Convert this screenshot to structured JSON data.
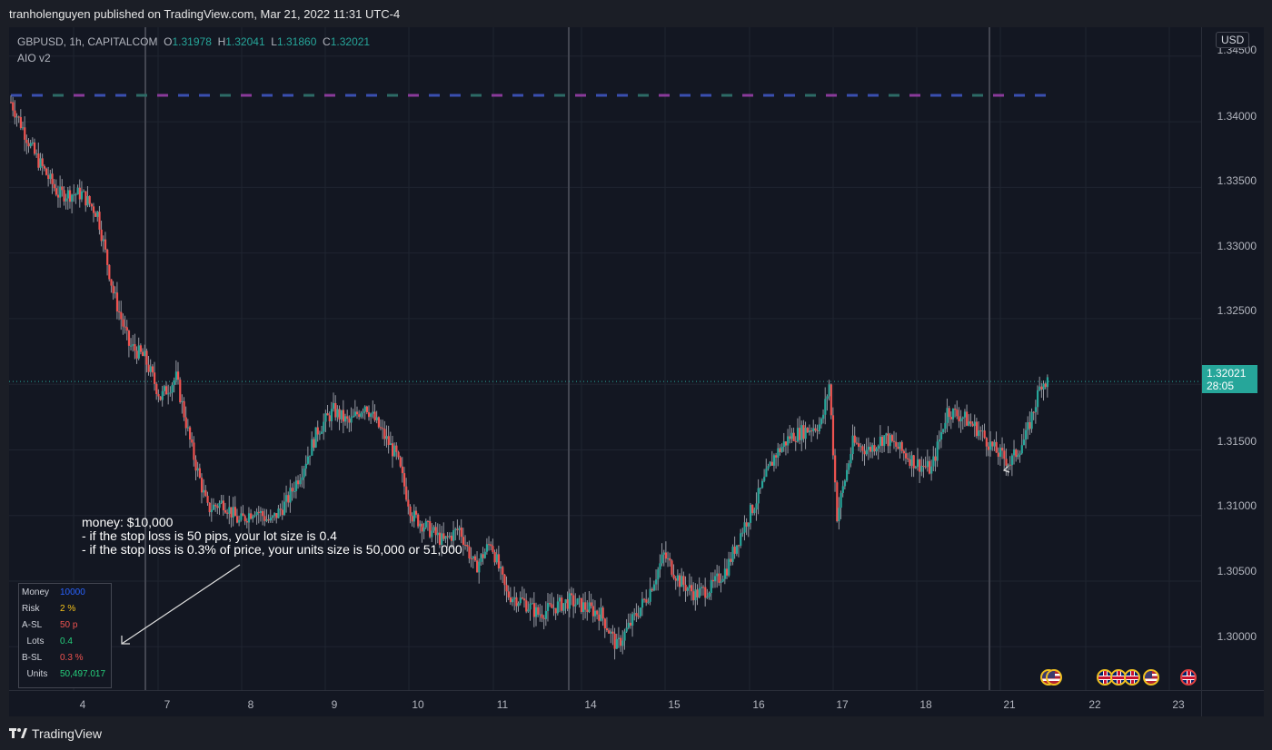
{
  "header": {
    "published": "tranholenguyen published on TradingView.com, Mar 21, 2022 11:31 UTC-4"
  },
  "legend": {
    "symbol": "GBPUSD, 1h, CAPITALCOM",
    "o_label": "O",
    "o_value": "1.31978",
    "h_label": "H",
    "h_value": "1.32041",
    "l_label": "L",
    "l_value": "1.31860",
    "c_label": "C",
    "c_value": "1.32021",
    "indicator": "AIO v2"
  },
  "price_axis": {
    "currency": "USD",
    "ticks": [
      "1.34500",
      "1.34000",
      "1.33500",
      "1.33000",
      "1.32500",
      "1.32021",
      "1.31500",
      "1.31000",
      "1.30500",
      "1.30000"
    ],
    "last_price": "1.32021",
    "countdown": "28:05"
  },
  "time_axis": {
    "ticks": [
      "4",
      "7",
      "8",
      "9",
      "10",
      "11",
      "14",
      "15",
      "16",
      "17",
      "18",
      "21",
      "22",
      "23"
    ]
  },
  "annotation": {
    "lines": [
      "money: $10,000",
      "- if the stop loss is 50 pips, your lot size is 0.4",
      "- if the stop loss is 0.3% of price, your units size is 50,000 or 51,000"
    ]
  },
  "info_table": {
    "rows": [
      {
        "key": "Money",
        "value": "10000",
        "color": "#2962ff"
      },
      {
        "key": "Risk",
        "value": "2 %",
        "color": "#f7c31a"
      },
      {
        "key": "A-SL",
        "value": "50 p",
        "color": "#ef5350"
      },
      {
        "key": "  Lots",
        "value": "0.4",
        "color": "#26d07c"
      },
      {
        "key": "B-SL",
        "value": "0.3 %",
        "color": "#ef5350"
      },
      {
        "key": "  Units",
        "value": "50,497.017",
        "color": "#26d07c"
      }
    ]
  },
  "footer": {
    "brand": "TradingView"
  },
  "colors": {
    "up": "#26a69a",
    "down": "#ef5350",
    "grid": "#1f2430",
    "session": "#434651"
  },
  "chart_data": {
    "type": "candlestick",
    "title": "GBPUSD, 1h, CAPITALCOM",
    "x": [
      "4",
      "7",
      "8",
      "9",
      "10",
      "11",
      "14",
      "15",
      "16",
      "17",
      "18",
      "21",
      "22",
      "23"
    ],
    "ylim": [
      1.2967,
      1.3472
    ],
    "y_ticks": [
      1.345,
      1.34,
      1.335,
      1.33,
      1.325,
      1.32,
      1.315,
      1.31,
      1.305,
      1.3
    ],
    "last_close": 1.32021,
    "path": [
      [
        0,
        1.3415
      ],
      [
        3,
        1.3375
      ],
      [
        6,
        1.3345
      ],
      [
        9,
        1.3345
      ],
      [
        11,
        1.333
      ],
      [
        13,
        1.327
      ],
      [
        15,
        1.323
      ],
      [
        17,
        1.322
      ],
      [
        19,
        1.319
      ],
      [
        21,
        1.3205
      ],
      [
        23,
        1.315
      ],
      [
        25,
        1.3105
      ],
      [
        27,
        1.311
      ],
      [
        29,
        1.3095
      ],
      [
        31,
        1.3105
      ],
      [
        33,
        1.3095
      ],
      [
        35,
        1.311
      ],
      [
        37,
        1.3135
      ],
      [
        39,
        1.3165
      ],
      [
        41,
        1.318
      ],
      [
        43,
        1.317
      ],
      [
        45,
        1.3185
      ],
      [
        47,
        1.3165
      ],
      [
        49,
        1.3145
      ],
      [
        51,
        1.31
      ],
      [
        53,
        1.309
      ],
      [
        55,
        1.308
      ],
      [
        57,
        1.309
      ],
      [
        59,
        1.306
      ],
      [
        61,
        1.308
      ],
      [
        63,
        1.304
      ],
      [
        65,
        1.3035
      ],
      [
        67,
        1.3025
      ],
      [
        69,
        1.303
      ],
      [
        71,
        1.3035
      ],
      [
        73,
        1.303
      ],
      [
        75,
        1.3025
      ],
      [
        77,
        1.3
      ],
      [
        79,
        1.302
      ],
      [
        81,
        1.304
      ],
      [
        83,
        1.307
      ],
      [
        85,
        1.305
      ],
      [
        87,
        1.304
      ],
      [
        89,
        1.3045
      ],
      [
        91,
        1.306
      ],
      [
        93,
        1.309
      ],
      [
        95,
        1.3115
      ],
      [
        97,
        1.3145
      ],
      [
        99,
        1.316
      ],
      [
        101,
        1.3165
      ],
      [
        103,
        1.317
      ],
      [
        104,
        1.32
      ],
      [
        105,
        1.31
      ],
      [
        107,
        1.3155
      ],
      [
        109,
        1.315
      ],
      [
        111,
        1.316
      ],
      [
        113,
        1.315
      ],
      [
        115,
        1.314
      ],
      [
        117,
        1.3135
      ],
      [
        119,
        1.318
      ],
      [
        121,
        1.3175
      ],
      [
        123,
        1.3165
      ],
      [
        125,
        1.315
      ],
      [
        127,
        1.314
      ],
      [
        129,
        1.316
      ],
      [
        131,
        1.3202
      ]
    ],
    "sessions_vertical_lines": [
      "7",
      "14",
      "21"
    ]
  }
}
